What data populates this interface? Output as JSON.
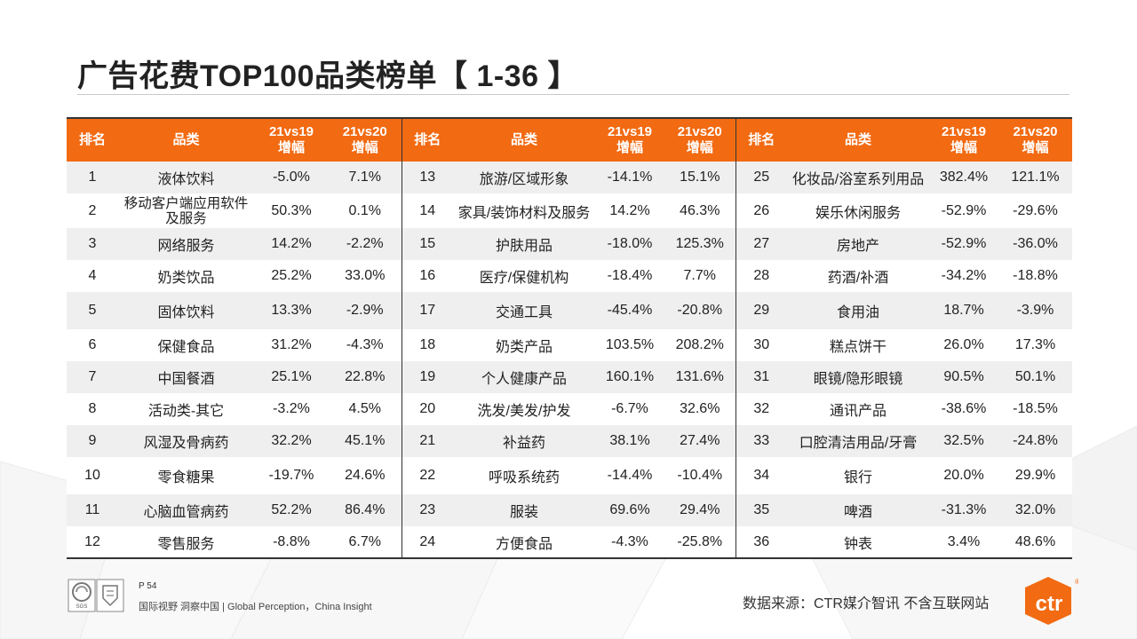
{
  "title": "广告花费TOP100品类榜单【 1-36 】",
  "headers": {
    "rank": "排名",
    "category": "品类",
    "vs19_line1": "21vs19",
    "vs19_line2": "增幅",
    "vs20_line1": "21vs20",
    "vs20_line2": "增幅"
  },
  "rows": [
    [
      {
        "rank": "1",
        "cat": "液体饮料",
        "v19": "-5.0%",
        "v20": "7.1%"
      },
      {
        "rank": "13",
        "cat": "旅游/区域形象",
        "v19": "-14.1%",
        "v20": "15.1%"
      },
      {
        "rank": "25",
        "cat": "化妆品/浴室系列用品",
        "v19": "382.4%",
        "v20": "121.1%"
      }
    ],
    [
      {
        "rank": "2",
        "cat": "移动客户端应用软件",
        "cat2": "及服务",
        "v19": "50.3%",
        "v20": "0.1%"
      },
      {
        "rank": "14",
        "cat": "家具/装饰材料及服务",
        "v19": "14.2%",
        "v20": "46.3%"
      },
      {
        "rank": "26",
        "cat": "娱乐休闲服务",
        "v19": "-52.9%",
        "v20": "-29.6%"
      }
    ],
    [
      {
        "rank": "3",
        "cat": "网络服务",
        "v19": "14.2%",
        "v20": "-2.2%"
      },
      {
        "rank": "15",
        "cat": "护肤用品",
        "v19": "-18.0%",
        "v20": "125.3%"
      },
      {
        "rank": "27",
        "cat": "房地产",
        "v19": "-52.9%",
        "v20": "-36.0%"
      }
    ],
    [
      {
        "rank": "4",
        "cat": "奶类饮品",
        "v19": "25.2%",
        "v20": "33.0%"
      },
      {
        "rank": "16",
        "cat": "医疗/保健机构",
        "v19": "-18.4%",
        "v20": "7.7%"
      },
      {
        "rank": "28",
        "cat": "药酒/补酒",
        "v19": "-34.2%",
        "v20": "-18.8%"
      }
    ],
    [
      {
        "rank": "5",
        "cat": "固体饮料",
        "v19": "13.3%",
        "v20": "-2.9%"
      },
      {
        "rank": "17",
        "cat": "交通工具",
        "v19": "-45.4%",
        "v20": "-20.8%"
      },
      {
        "rank": "29",
        "cat": "食用油",
        "v19": "18.7%",
        "v20": "-3.9%"
      }
    ],
    [
      {
        "rank": "6",
        "cat": "保健食品",
        "v19": "31.2%",
        "v20": "-4.3%"
      },
      {
        "rank": "18",
        "cat": "奶类产品",
        "v19": "103.5%",
        "v20": "208.2%"
      },
      {
        "rank": "30",
        "cat": "糕点饼干",
        "v19": "26.0%",
        "v20": "17.3%"
      }
    ],
    [
      {
        "rank": "7",
        "cat": "中国餐酒",
        "v19": "25.1%",
        "v20": "22.8%"
      },
      {
        "rank": "19",
        "cat": "个人健康产品",
        "v19": "160.1%",
        "v20": "131.6%"
      },
      {
        "rank": "31",
        "cat": "眼镜/隐形眼镜",
        "v19": "90.5%",
        "v20": "50.1%"
      }
    ],
    [
      {
        "rank": "8",
        "cat": "活动类-其它",
        "v19": "-3.2%",
        "v20": "4.5%"
      },
      {
        "rank": "20",
        "cat": "洗发/美发/护发",
        "v19": "-6.7%",
        "v20": "32.6%"
      },
      {
        "rank": "32",
        "cat": "通讯产品",
        "v19": "-38.6%",
        "v20": "-18.5%"
      }
    ],
    [
      {
        "rank": "9",
        "cat": "风湿及骨病药",
        "v19": "32.2%",
        "v20": "45.1%"
      },
      {
        "rank": "21",
        "cat": "补益药",
        "v19": "38.1%",
        "v20": "27.4%"
      },
      {
        "rank": "33",
        "cat": "口腔清洁用品/牙膏",
        "v19": "32.5%",
        "v20": "-24.8%"
      }
    ],
    [
      {
        "rank": "10",
        "cat": "零食糖果",
        "v19": "-19.7%",
        "v20": "24.6%"
      },
      {
        "rank": "22",
        "cat": "呼吸系统药",
        "v19": "-14.4%",
        "v20": "-10.4%"
      },
      {
        "rank": "34",
        "cat": "银行",
        "v19": "20.0%",
        "v20": "29.9%"
      }
    ],
    [
      {
        "rank": "11",
        "cat": "心脑血管病药",
        "v19": "52.2%",
        "v20": "86.4%"
      },
      {
        "rank": "23",
        "cat": "服装",
        "v19": "69.6%",
        "v20": "29.4%"
      },
      {
        "rank": "35",
        "cat": "啤酒",
        "v19": "-31.3%",
        "v20": "32.0%"
      }
    ],
    [
      {
        "rank": "12",
        "cat": "零售服务",
        "v19": "-8.8%",
        "v20": "6.7%"
      },
      {
        "rank": "24",
        "cat": "方便食品",
        "v19": "-4.3%",
        "v20": "-25.8%"
      },
      {
        "rank": "36",
        "cat": "钟表",
        "v19": "3.4%",
        "v20": "48.6%"
      }
    ]
  ],
  "footer": {
    "page": "P 54",
    "slogan": "国际视野  洞察中国 |  Global Perception，China Insight",
    "source": "数据来源：CTR媒介智讯  不含互联网站",
    "brand": "ctr",
    "registered": "®",
    "cert_sgs": "SGS"
  },
  "colors": {
    "header_bg": "#f26a12",
    "brand_orange": "#f26a12"
  }
}
